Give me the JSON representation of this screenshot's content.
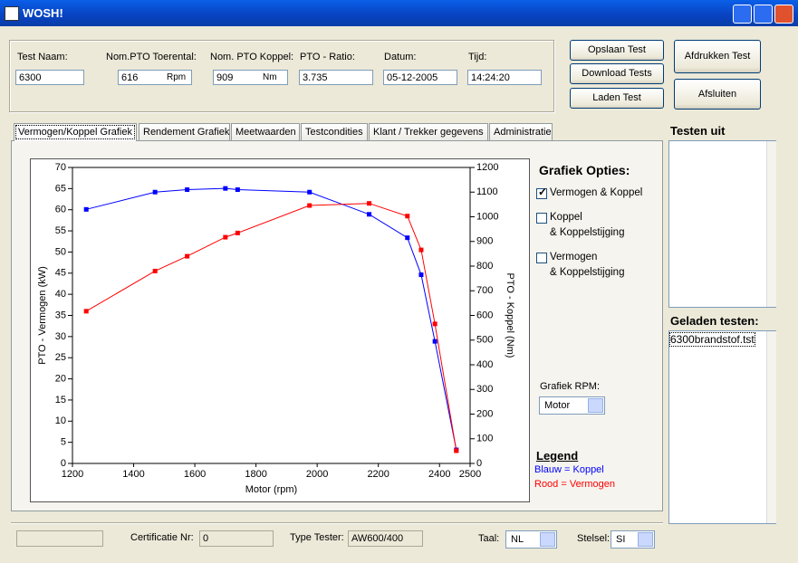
{
  "window": {
    "title": "WOSH!"
  },
  "test_info": {
    "fields": [
      {
        "label": "Test Naam:",
        "value": "6300"
      },
      {
        "label": "Nom.PTO Toerental:",
        "value": "616",
        "unit": "Rpm"
      },
      {
        "label": "Nom. PTO Koppel:",
        "value": "909",
        "unit": "Nm"
      },
      {
        "label": "PTO - Ratio:",
        "value": "3.735"
      },
      {
        "label": "Datum:",
        "value": "05-12-2005"
      },
      {
        "label": "Tijd:",
        "value": "14:24:20"
      }
    ]
  },
  "buttons": [
    "Opslaan Test",
    "Download Tests",
    "Laden Test",
    "Afdrukken Test",
    "Afsluiten"
  ],
  "tabs": [
    "Vermogen/Koppel Grafiek",
    "Rendement Grafiek",
    "Meetwaarden",
    "Testcondities",
    "Klant / Trekker gegevens",
    "Administratie"
  ],
  "graph_options": {
    "title": "Grafiek Opties:",
    "options": [
      {
        "lines": [
          "Vermogen & Koppel"
        ],
        "checked": true
      },
      {
        "lines": [
          "Koppel",
          "& Koppelstijging"
        ],
        "checked": false
      },
      {
        "lines": [
          "Vermogen",
          "& Koppelstijging"
        ],
        "checked": false
      }
    ],
    "rpm_label": "Grafiek RPM:",
    "rpm_value": "Motor",
    "legend_title": "Legend"
  },
  "test_lists": {
    "out_title": "Testen uit",
    "loaded_title": "Geladen testen:",
    "loaded_items": [
      "6300brandstof.tst"
    ]
  },
  "footer": {
    "cert_label": "Certificatie Nr:",
    "cert_value": "0",
    "tester_label": "Type Tester:",
    "tester_value": "AW600/400",
    "lang_label": "Taal:",
    "lang_value": "NL",
    "system_label": "Stelsel:",
    "system_value": "SI"
  },
  "chart_data": {
    "type": "line",
    "xlabel": "Motor (rpm)",
    "ylabel": "PTO - Vermogen (kW)",
    "y2label": "PTO - Koppel (Nm)",
    "x": [
      1245,
      1470,
      1575,
      1700,
      1740,
      1975,
      2170,
      2295,
      2340,
      2385,
      2455
    ],
    "xlim": [
      1200,
      2500
    ],
    "xticks": [
      1200,
      1400,
      1600,
      1800,
      2000,
      2200,
      2400,
      2500
    ],
    "ylim": [
      0,
      70
    ],
    "yticks": [
      0,
      5,
      10,
      15,
      20,
      25,
      30,
      35,
      40,
      45,
      50,
      55,
      60,
      65,
      70
    ],
    "y2lim": [
      0,
      1200
    ],
    "y2ticks": [
      0,
      100,
      200,
      300,
      400,
      500,
      600,
      700,
      800,
      900,
      1000,
      1100,
      1200
    ],
    "grid": false,
    "series": [
      {
        "name": "Blauw = Koppel",
        "color": "#0000ff",
        "axis": "y2",
        "values": [
          1030,
          1100,
          1110,
          1115,
          1110,
          1100,
          1010,
          915,
          765,
          495,
          55
        ]
      },
      {
        "name": "Rood = Vermogen",
        "color": "#ff0000",
        "axis": "y",
        "values": [
          36,
          45.5,
          49,
          53.5,
          54.5,
          61,
          61.5,
          58.5,
          50.5,
          33,
          3
        ]
      }
    ]
  }
}
